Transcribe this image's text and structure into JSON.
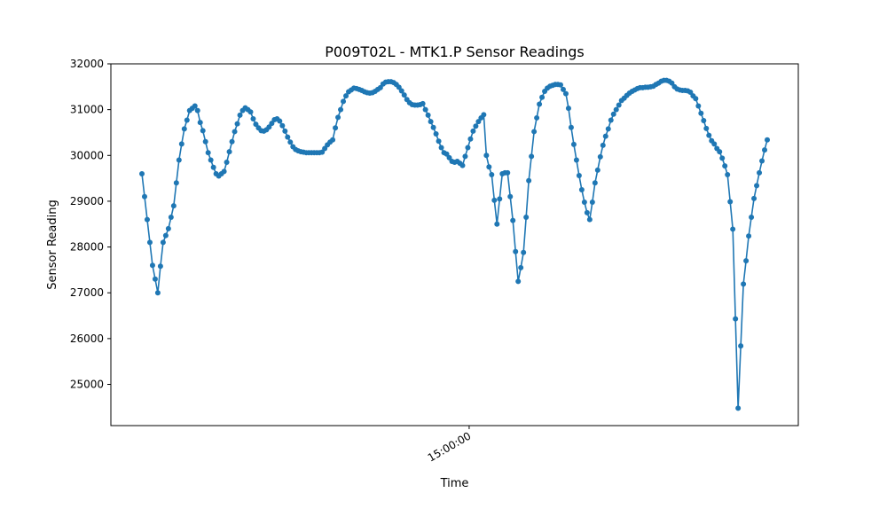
{
  "chart_data": {
    "type": "line",
    "title": "P009T02L - MTK1.P Sensor Readings",
    "xlabel": "Time",
    "ylabel": "Sensor Reading",
    "ylim": [
      24100,
      32000
    ],
    "yticks": [
      25000,
      26000,
      27000,
      28000,
      29000,
      30000,
      31000,
      32000
    ],
    "xticks": [
      {
        "label": "15:00:00",
        "index": 123.5
      }
    ],
    "grid": false,
    "legend": "none",
    "marker": "circle",
    "color": "#1f77b4",
    "series": [
      {
        "name": "",
        "values": [
          29600,
          29100,
          28600,
          28100,
          27600,
          27300,
          27000,
          27580,
          28100,
          28250,
          28400,
          28650,
          28900,
          29400,
          29900,
          30250,
          30580,
          30770,
          30980,
          31030,
          31080,
          30980,
          30720,
          30540,
          30300,
          30060,
          29900,
          29740,
          29600,
          29550,
          29600,
          29650,
          29850,
          30080,
          30300,
          30520,
          30690,
          30880,
          30980,
          31040,
          31000,
          30950,
          30800,
          30680,
          30600,
          30540,
          30530,
          30560,
          30620,
          30700,
          30780,
          30800,
          30750,
          30650,
          30530,
          30400,
          30290,
          30190,
          30130,
          30100,
          30080,
          30070,
          30060,
          30060,
          30060,
          30060,
          30060,
          30060,
          30070,
          30150,
          30230,
          30290,
          30340,
          30600,
          30830,
          31000,
          31180,
          31300,
          31390,
          31430,
          31470,
          31460,
          31440,
          31420,
          31390,
          31370,
          31360,
          31370,
          31400,
          31440,
          31480,
          31560,
          31600,
          31610,
          31610,
          31590,
          31550,
          31490,
          31410,
          31320,
          31220,
          31150,
          31110,
          31100,
          31100,
          31110,
          31130,
          31000,
          30880,
          30740,
          30610,
          30470,
          30310,
          30170,
          30060,
          30030,
          29950,
          29870,
          29850,
          29870,
          29830,
          29780,
          29980,
          30170,
          30360,
          30530,
          30640,
          30740,
          30820,
          30890,
          30000,
          29750,
          29580,
          29020,
          28500,
          29050,
          29600,
          29620,
          29620,
          29100,
          28580,
          27900,
          27250,
          27550,
          27880,
          28650,
          29450,
          29980,
          30520,
          30820,
          31120,
          31270,
          31400,
          31470,
          31510,
          31530,
          31550,
          31550,
          31540,
          31440,
          31350,
          31030,
          30610,
          30240,
          29900,
          29560,
          29250,
          28980,
          28750,
          28600,
          28980,
          29400,
          29680,
          29970,
          30220,
          30420,
          30580,
          30770,
          30900,
          31000,
          31100,
          31200,
          31250,
          31310,
          31360,
          31400,
          31430,
          31460,
          31480,
          31480,
          31490,
          31490,
          31500,
          31510,
          31550,
          31580,
          31620,
          31640,
          31640,
          31620,
          31580,
          31500,
          31450,
          31430,
          31420,
          31420,
          31410,
          31380,
          31300,
          31240,
          31080,
          30920,
          30760,
          30590,
          30440,
          30320,
          30250,
          30150,
          30080,
          29940,
          29770,
          29580,
          28990,
          28390,
          26430,
          24480,
          25840,
          27190,
          27700,
          28240,
          28650,
          29060,
          29340,
          29620,
          29880,
          30120,
          30340
        ]
      }
    ]
  },
  "colors": {
    "series": "#1f77b4",
    "axes": "#000000",
    "background": "#ffffff"
  }
}
